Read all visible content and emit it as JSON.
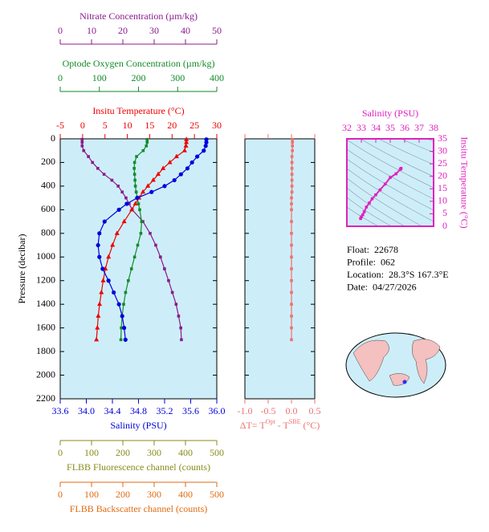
{
  "chart_data": [
    {
      "type": "profile",
      "ylabel": "Pressure (decibar)",
      "ylim": [
        0,
        2200
      ],
      "yticks": [
        0,
        200,
        400,
        600,
        800,
        1000,
        1200,
        1400,
        1600,
        1800,
        2000,
        2200
      ],
      "background": "#cdeef8",
      "y": [
        5,
        30,
        60,
        100,
        150,
        200,
        250,
        300,
        350,
        400,
        450,
        500,
        550,
        600,
        700,
        800,
        900,
        1000,
        1100,
        1200,
        1300,
        1400,
        1500,
        1600,
        1700
      ],
      "axes": [
        {
          "label": "Nitrate Concentration (µm/kg)",
          "side": "top",
          "color": "#8b1a8b",
          "marker": "square",
          "xlim": [
            0,
            50
          ],
          "xticks": [
            0,
            10,
            20,
            30,
            40,
            50
          ],
          "values": [
            7,
            7,
            7,
            7.5,
            9,
            10.3,
            12,
            14,
            16.5,
            18.5,
            19.8,
            21,
            22,
            23,
            26.4,
            28.7,
            30.5,
            32,
            33.3,
            34.6,
            35.8,
            37,
            37.8,
            38.5,
            38.7
          ]
        },
        {
          "label": "Optode Oxygen Concentration (µm/kg)",
          "side": "top",
          "color": "#128a2a",
          "marker": "square",
          "xlim": [
            0,
            400
          ],
          "xticks": [
            0,
            100,
            200,
            300,
            400
          ],
          "values": [
            222,
            222,
            220,
            212,
            195,
            190,
            189,
            190,
            191,
            192,
            194,
            197,
            200,
            203,
            208,
            206,
            198,
            190,
            182,
            174,
            167,
            162,
            158,
            156,
            155
          ]
        },
        {
          "label": "Insitu Temperature (°C)",
          "side": "top",
          "color": "#ee0000",
          "marker": "triangle",
          "xlim": [
            -5,
            30
          ],
          "xticks": [
            -5,
            0,
            5,
            10,
            15,
            20,
            25,
            30
          ],
          "values": [
            23.2,
            23.2,
            23.1,
            22.8,
            21,
            19.5,
            18,
            16.9,
            15.8,
            14.6,
            13.5,
            12.6,
            11.8,
            11,
            9.3,
            7.7,
            6.7,
            5.8,
            5.1,
            4.6,
            4.2,
            3.8,
            3.5,
            3.3,
            3.1
          ]
        },
        {
          "label": "Salinity (PSU)",
          "side": "bottom",
          "color": "#0000dd",
          "marker": "circle",
          "xlim": [
            33.6,
            36
          ],
          "xticks": [
            33.6,
            {
              "value": 34,
              "label": "34.0"
            },
            34.4,
            34.8,
            35.2,
            35.6,
            {
              "value": 36,
              "label": "36.0"
            }
          ],
          "values": [
            35.84,
            35.84,
            35.83,
            35.8,
            35.7,
            35.62,
            35.55,
            35.45,
            35.35,
            35.2,
            35.0,
            34.78,
            34.62,
            34.5,
            34.28,
            34.2,
            34.18,
            34.2,
            34.25,
            34.34,
            34.42,
            34.5,
            34.55,
            34.58,
            34.6
          ]
        },
        {
          "label": "FLBB Fluorescence channel (counts)",
          "side": "bottom",
          "color": "#8b8b1a",
          "xlim": [
            0,
            500
          ],
          "xticks": [
            0,
            100,
            200,
            300,
            400,
            500
          ]
        },
        {
          "label": "FLBB Backscatter channel (counts)",
          "side": "bottom",
          "color": "#e06a10",
          "xlim": [
            0,
            500
          ],
          "xticks": [
            0,
            100,
            200,
            300,
            400,
            500
          ]
        }
      ]
    },
    {
      "type": "profile",
      "color": "#f07070",
      "background": "#cdeef8",
      "ylim": [
        0,
        2200
      ],
      "xlim": [
        -1,
        0.5
      ],
      "xticks": [
        {
          "value": -1,
          "label": "-1.0"
        },
        -0.5,
        {
          "value": 0,
          "label": "0.0"
        },
        0.5
      ],
      "xlabel_parts": [
        "ΔT= T",
        "Opt",
        " - T",
        "SBE",
        " (°C)"
      ],
      "y": [
        5,
        30,
        60,
        100,
        150,
        200,
        250,
        300,
        350,
        400,
        450,
        500,
        550,
        600,
        700,
        800,
        900,
        1000,
        1100,
        1200,
        1300,
        1400,
        1500,
        1600,
        1700
      ],
      "values": [
        0.02,
        0.02,
        0.02,
        0.02,
        0.01,
        0.01,
        0.01,
        0.01,
        0.01,
        0.01,
        0.01,
        0,
        0,
        0,
        0,
        0,
        0,
        0,
        0,
        0,
        0,
        0,
        0,
        0,
        0
      ]
    },
    {
      "type": "scatter",
      "color": "#e020c0",
      "background": "#cdeef8",
      "title": "Salinity (PSU)",
      "ylabel": "Insitu Temperature (°C)",
      "xlim": [
        32,
        38
      ],
      "xticks": [
        32,
        33,
        34,
        35,
        36,
        37,
        38
      ],
      "ylim": [
        0,
        35
      ],
      "yticks": [
        0,
        5,
        10,
        15,
        20,
        25,
        30,
        35
      ],
      "x": [
        32.95,
        33.0,
        33.1,
        33.2,
        33.35,
        33.55,
        33.75,
        34.0,
        34.3,
        34.65,
        35.0,
        35.4,
        35.7,
        35.75
      ],
      "y": [
        3.1,
        3.8,
        4.6,
        5.8,
        7.7,
        9.3,
        11,
        12.6,
        14.6,
        16.9,
        19.5,
        21,
        22.8,
        23.2
      ]
    }
  ],
  "info": [
    [
      "Float:",
      "22678"
    ],
    [
      "Profile:",
      "062"
    ],
    [
      "Location:",
      "28.3°S  167.3°E"
    ],
    [
      "Date:",
      "04/27/2026"
    ]
  ]
}
